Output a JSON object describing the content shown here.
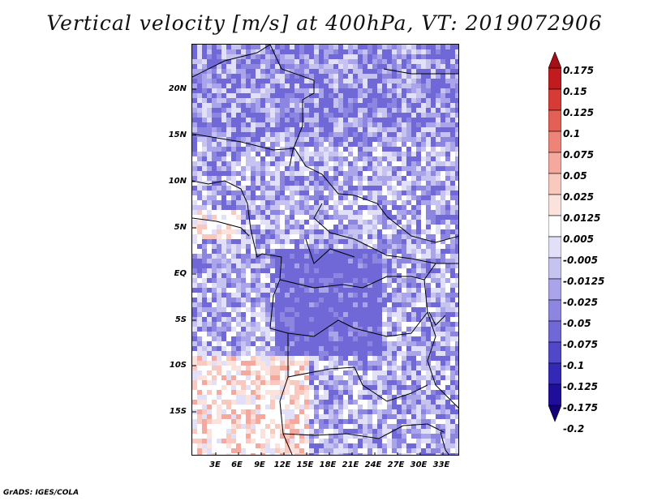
{
  "title": "Vertical velocity [m/s] at 400hPa, VT: 2019072906",
  "credit": "GrADS: IGES/COLA",
  "axes": {
    "lat_labels": [
      "20N",
      "15N",
      "10N",
      "5N",
      "EQ",
      "5S",
      "10S",
      "15S"
    ],
    "lon_labels": [
      "3E",
      "6E",
      "9E",
      "12E",
      "15E",
      "18E",
      "21E",
      "24E",
      "27E",
      "30E",
      "33E"
    ]
  },
  "colorbar": {
    "labels": [
      "0.175",
      "0.15",
      "0.125",
      "0.1",
      "0.075",
      "0.05",
      "0.025",
      "0.0125",
      "0.005",
      "-0.005",
      "-0.0125",
      "-0.025",
      "-0.05",
      "-0.075",
      "-0.1",
      "-0.125",
      "-0.175",
      "-0.2"
    ],
    "colors": [
      "#a50f15",
      "#c11b20",
      "#d63b35",
      "#e45f55",
      "#ee8378",
      "#f5a89d",
      "#f9c8bf",
      "#fce2dc",
      "#ffffff",
      "#e2e0f8",
      "#c6c3f1",
      "#aaa5ea",
      "#8c86e1",
      "#6f68d6",
      "#5048c9",
      "#3329b6",
      "#1f0d9c",
      "#14007a"
    ]
  },
  "map": {
    "warm_color": "#e8857a",
    "cool_color": "#8f8ae6"
  }
}
